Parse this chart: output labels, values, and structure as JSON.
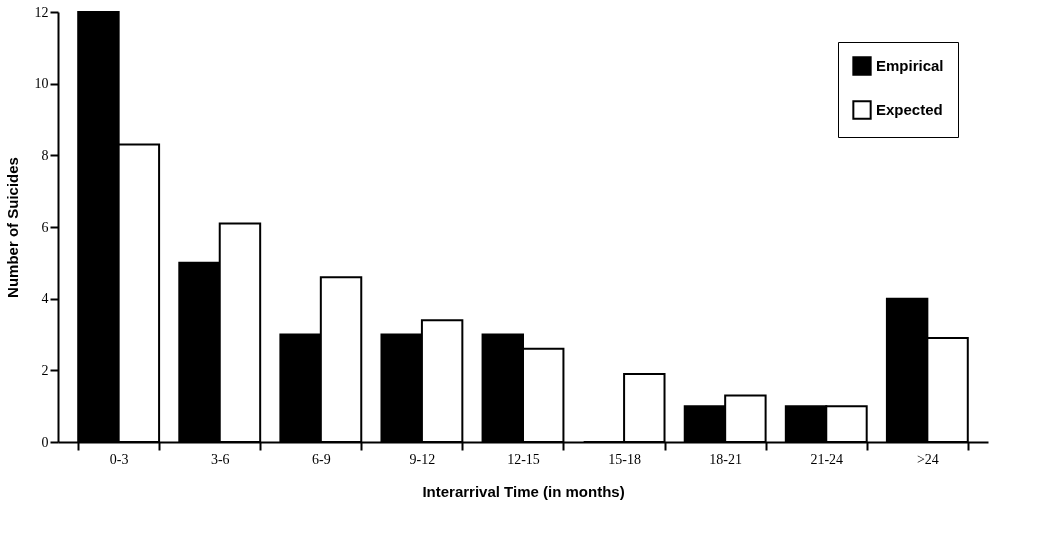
{
  "chart_data": {
    "type": "bar",
    "xlabel": "Interarrival  Time  (in  months)",
    "ylabel": "Number  of  Suicides",
    "categories": [
      "0-3",
      "3-6",
      "6-9",
      "9-12",
      "12-15",
      "15-18",
      "18-21",
      "21-24",
      ">24"
    ],
    "series": [
      {
        "name": "Empirical",
        "color": "#000000",
        "values": [
          12,
          5,
          3,
          3,
          3,
          0,
          1,
          1,
          4
        ]
      },
      {
        "name": "Expected",
        "color": "#ffffff",
        "values": [
          8.3,
          6.1,
          4.6,
          3.4,
          2.6,
          1.9,
          1.3,
          1.0,
          2.9
        ]
      }
    ],
    "ylim": [
      0,
      12
    ],
    "yticks": [
      0,
      2,
      4,
      6,
      8,
      10,
      12
    ],
    "grid": false,
    "legend": "top right"
  }
}
